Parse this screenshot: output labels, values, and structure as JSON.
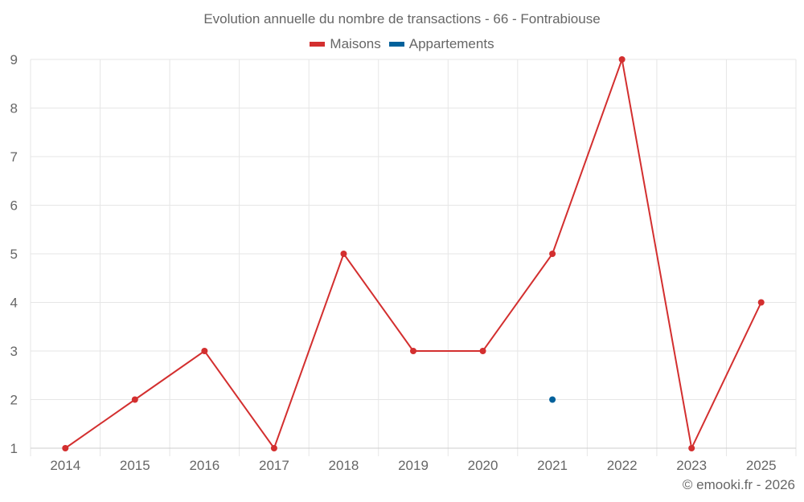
{
  "title": "Evolution annuelle du nombre de transactions - 66 - Fontrabiouse",
  "footer": "© emooki.fr - 2026",
  "legend": [
    {
      "label": "Maisons",
      "color": "#d32f2f"
    },
    {
      "label": "Appartements",
      "color": "#01619b"
    }
  ],
  "chart_data": {
    "type": "line",
    "title": "Evolution annuelle du nombre de transactions - 66 - Fontrabiouse",
    "xlabel": "",
    "ylabel": "",
    "categories": [
      "2014",
      "2015",
      "2016",
      "2017",
      "2018",
      "2019",
      "2020",
      "2021",
      "2022",
      "2023",
      "2025"
    ],
    "series": [
      {
        "name": "Maisons",
        "color": "#d32f2f",
        "values": [
          1,
          2,
          3,
          1,
          5,
          3,
          3,
          5,
          9,
          1,
          4
        ]
      },
      {
        "name": "Appartements",
        "color": "#01619b",
        "values": [
          null,
          null,
          null,
          null,
          null,
          null,
          null,
          2,
          null,
          null,
          null
        ]
      }
    ],
    "ylim": [
      1,
      9
    ],
    "yticks": [
      1,
      2,
      3,
      4,
      5,
      6,
      7,
      8,
      9
    ],
    "grid": true,
    "legend_position": "top"
  }
}
